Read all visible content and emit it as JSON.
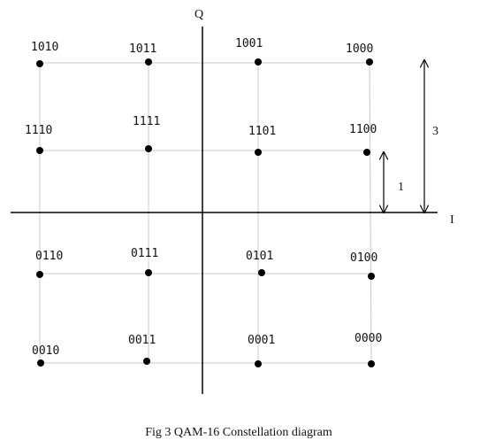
{
  "axes": {
    "horizontal": "I",
    "vertical": "Q"
  },
  "annotations": {
    "inner": "1",
    "outer": "3"
  },
  "nodes": [
    {
      "label": "1010"
    },
    {
      "label": "1011"
    },
    {
      "label": "1001"
    },
    {
      "label": "1000"
    },
    {
      "label": "1110"
    },
    {
      "label": "1111"
    },
    {
      "label": "1101"
    },
    {
      "label": "1100"
    },
    {
      "label": "0110"
    },
    {
      "label": "0111"
    },
    {
      "label": "0101"
    },
    {
      "label": "0100"
    },
    {
      "label": "0010"
    },
    {
      "label": "0011"
    },
    {
      "label": "0001"
    },
    {
      "label": "0000"
    }
  ],
  "caption": "Fig 3 QAM-16 Constellation diagram"
}
